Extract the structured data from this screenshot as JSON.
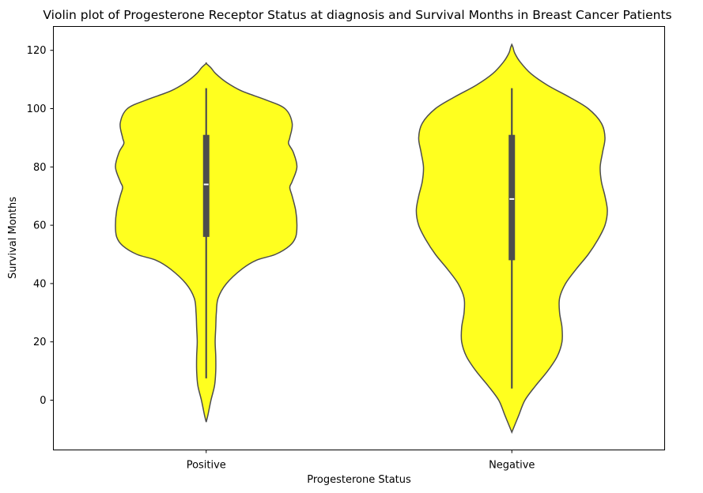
{
  "chart_data": {
    "type": "violin",
    "title": "Violin plot of Progesterone Receptor Status at diagnosis and Survival Months in Breast Cancer Patients",
    "xlabel": "Progesterone Status",
    "ylabel": "Survival Months",
    "categories": [
      "Positive",
      "Negative"
    ],
    "ylim": [
      -17,
      129
    ],
    "yticks": [
      0,
      20,
      40,
      60,
      80,
      100,
      120
    ],
    "fill_color": "#ffff00",
    "edge_color": "#4d4d4d",
    "grid": false,
    "violins": [
      {
        "category": "Positive",
        "extent": [
          -7.5,
          115.5
        ],
        "quartiles": [
          56,
          74,
          91
        ],
        "whiskers": [
          7.5,
          107
        ],
        "profile": [
          [
            -7.5,
            0.0
          ],
          [
            -5,
            0.015
          ],
          [
            0,
            0.04
          ],
          [
            5,
            0.07
          ],
          [
            10,
            0.08
          ],
          [
            15,
            0.08
          ],
          [
            20,
            0.075
          ],
          [
            25,
            0.08
          ],
          [
            30,
            0.085
          ],
          [
            35,
            0.1
          ],
          [
            40,
            0.17
          ],
          [
            45,
            0.3
          ],
          [
            48,
            0.42
          ],
          [
            50,
            0.58
          ],
          [
            53,
            0.7
          ],
          [
            56,
            0.75
          ],
          [
            60,
            0.76
          ],
          [
            65,
            0.75
          ],
          [
            70,
            0.72
          ],
          [
            73,
            0.7
          ],
          [
            75,
            0.72
          ],
          [
            80,
            0.76
          ],
          [
            85,
            0.73
          ],
          [
            88,
            0.69
          ],
          [
            90,
            0.7
          ],
          [
            95,
            0.72
          ],
          [
            100,
            0.66
          ],
          [
            103,
            0.5
          ],
          [
            106,
            0.3
          ],
          [
            109,
            0.17
          ],
          [
            112,
            0.08
          ],
          [
            114,
            0.04
          ],
          [
            115.5,
            0.0
          ]
        ]
      },
      {
        "category": "Negative",
        "extent": [
          -11,
          122
        ],
        "quartiles": [
          48,
          69,
          91
        ],
        "whiskers": [
          4,
          107
        ],
        "profile": [
          [
            -11,
            0.0
          ],
          [
            -8,
            0.03
          ],
          [
            -5,
            0.06
          ],
          [
            0,
            0.11
          ],
          [
            5,
            0.2
          ],
          [
            10,
            0.3
          ],
          [
            15,
            0.38
          ],
          [
            20,
            0.42
          ],
          [
            25,
            0.42
          ],
          [
            30,
            0.4
          ],
          [
            35,
            0.4
          ],
          [
            40,
            0.45
          ],
          [
            45,
            0.54
          ],
          [
            50,
            0.64
          ],
          [
            55,
            0.72
          ],
          [
            60,
            0.78
          ],
          [
            65,
            0.8
          ],
          [
            70,
            0.78
          ],
          [
            75,
            0.75
          ],
          [
            80,
            0.74
          ],
          [
            85,
            0.76
          ],
          [
            90,
            0.78
          ],
          [
            95,
            0.75
          ],
          [
            100,
            0.64
          ],
          [
            104,
            0.48
          ],
          [
            108,
            0.3
          ],
          [
            112,
            0.16
          ],
          [
            116,
            0.07
          ],
          [
            119,
            0.025
          ],
          [
            121,
            0.01
          ],
          [
            122,
            0.0
          ]
        ]
      }
    ]
  }
}
